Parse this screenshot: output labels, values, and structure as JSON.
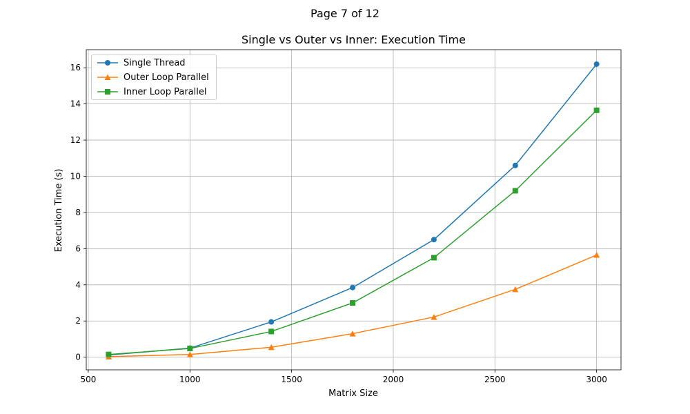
{
  "page_header": "Page 7 of 12",
  "chart_data": {
    "type": "line",
    "title": "Single vs Outer vs Inner: Execution Time",
    "xlabel": "Matrix Size",
    "ylabel": "Execution Time (s)",
    "x": [
      600,
      1000,
      1400,
      1800,
      2200,
      2600,
      3000
    ],
    "xlim": [
      490,
      3120
    ],
    "ylim": [
      -0.7,
      17
    ],
    "xticks": [
      500,
      1000,
      1500,
      2000,
      2500,
      3000
    ],
    "yticks": [
      0,
      2,
      4,
      6,
      8,
      10,
      12,
      14,
      16
    ],
    "grid": true,
    "legend_position": "top-left",
    "series": [
      {
        "name": "Single Thread",
        "color": "#1f77b4",
        "marker": "circle",
        "values": [
          0.12,
          0.5,
          1.95,
          3.85,
          6.5,
          10.6,
          16.2
        ]
      },
      {
        "name": "Outer Loop Parallel",
        "color": "#ff7f0e",
        "marker": "triangle",
        "values": [
          0.03,
          0.15,
          0.55,
          1.3,
          2.22,
          3.75,
          5.65
        ]
      },
      {
        "name": "Inner Loop Parallel",
        "color": "#2ca02c",
        "marker": "square",
        "values": [
          0.15,
          0.48,
          1.42,
          3.0,
          5.5,
          9.2,
          13.65
        ]
      }
    ]
  }
}
